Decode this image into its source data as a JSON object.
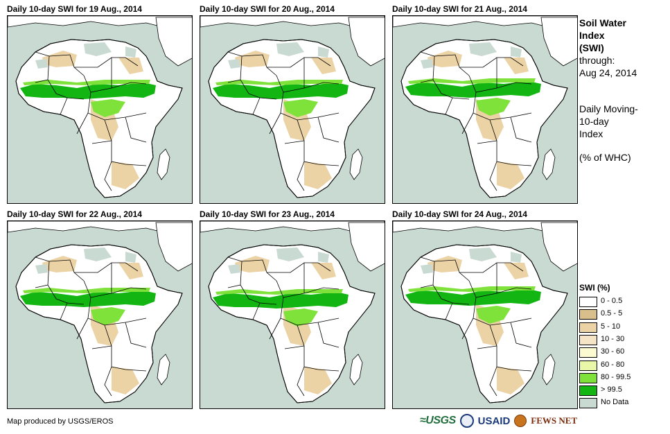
{
  "panels": [
    {
      "title": "Daily 10-day  SWI for 19 Aug., 2014"
    },
    {
      "title": "Daily 10-day  SWI for 20 Aug., 2014"
    },
    {
      "title": "Daily 10-day  SWI for 21 Aug., 2014"
    },
    {
      "title": "Daily 10-day  SWI for 22 Aug., 2014"
    },
    {
      "title": "Daily 10-day  SWI for 23 Aug., 2014"
    },
    {
      "title": "Daily 10-day  SWI for 24 Aug., 2014"
    }
  ],
  "side_text": {
    "line1": "Soil Water",
    "line2": "Index",
    "line3": "(SWI)",
    "through_label": "through:",
    "through_date": "Aug 24, 2014",
    "desc1": "Daily Moving-",
    "desc2": "10-day",
    "desc3": "Index",
    "units": "(% of WHC)"
  },
  "legend": {
    "title": "SWI (%)",
    "items": [
      {
        "label": "0 - 0.5",
        "color": "#ffffff"
      },
      {
        "label": "0.5 - 5",
        "color": "#d9bf8c"
      },
      {
        "label": "5 - 10",
        "color": "#ecd3a6"
      },
      {
        "label": "10 - 30",
        "color": "#f6e4c6"
      },
      {
        "label": "30 - 60",
        "color": "#fbfad0"
      },
      {
        "label": "60 - 80",
        "color": "#e8f8a8"
      },
      {
        "label": "80 - 99.5",
        "color": "#7fe23a"
      },
      {
        "label": "> 99.5",
        "color": "#12b512"
      },
      {
        "label": "No Data",
        "color": "#c9dad3"
      }
    ]
  },
  "footer": {
    "credit": "Map produced by USGS/EROS",
    "logo_usgs": "≈USGS",
    "logo_usaid": "USAID",
    "logo_fews": "FEWS NET"
  },
  "colors": {
    "ocean": "#c9dad3",
    "land": "#ffffff",
    "dry": "#ecd3a6",
    "wet": "#12b512",
    "moist": "#7fe23a",
    "nodata": "#c9dad3"
  }
}
